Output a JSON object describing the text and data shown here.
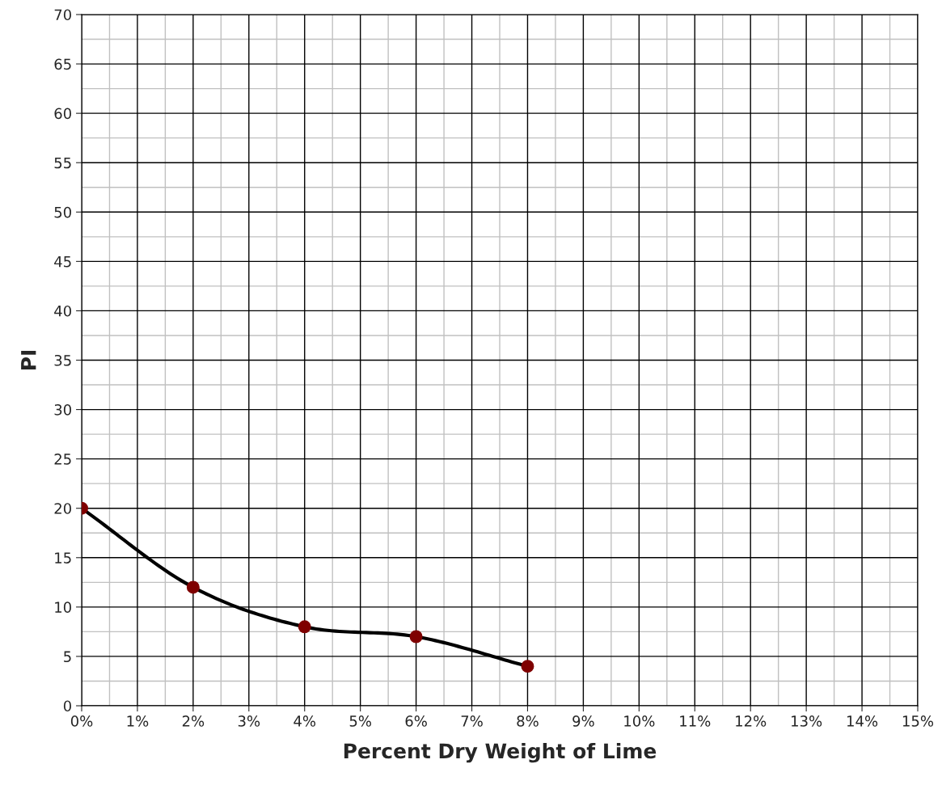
{
  "chart_data": {
    "type": "scatter",
    "xlabel": "Percent Dry Weight of Lime",
    "ylabel": "PI",
    "x": [
      0,
      2,
      4,
      6,
      8
    ],
    "series": [
      {
        "type": "line",
        "color": "#000000",
        "marker": "none",
        "line_style": "solid",
        "values": [
          20,
          12,
          8,
          7,
          4
        ]
      },
      {
        "color": "#7f0000",
        "marker": "circle",
        "values": [
          20,
          12,
          8,
          7,
          4
        ]
      }
    ],
    "xlim": [
      0,
      15
    ],
    "ylim": [
      0,
      70
    ],
    "xticks": [
      {
        "value": 0,
        "label": "0%"
      },
      {
        "value": 1,
        "label": "1%"
      },
      {
        "value": 2,
        "label": "2%"
      },
      {
        "value": 3,
        "label": "3%"
      },
      {
        "value": 4,
        "label": "4%"
      },
      {
        "value": 5,
        "label": "5%"
      },
      {
        "value": 6,
        "label": "6%"
      },
      {
        "value": 7,
        "label": "7%"
      },
      {
        "value": 8,
        "label": "8%"
      },
      {
        "value": 9,
        "label": "9%"
      },
      {
        "value": 10,
        "label": "10%"
      },
      {
        "value": 11,
        "label": "11%"
      },
      {
        "value": 12,
        "label": "12%"
      },
      {
        "value": 13,
        "label": "13%"
      },
      {
        "value": 14,
        "label": "14%"
      },
      {
        "value": 15,
        "label": "15%"
      }
    ],
    "yticks": [
      0,
      5,
      10,
      15,
      20,
      25,
      30,
      35,
      40,
      45,
      50,
      55,
      60,
      65,
      70
    ],
    "grid": true,
    "legend": false
  }
}
